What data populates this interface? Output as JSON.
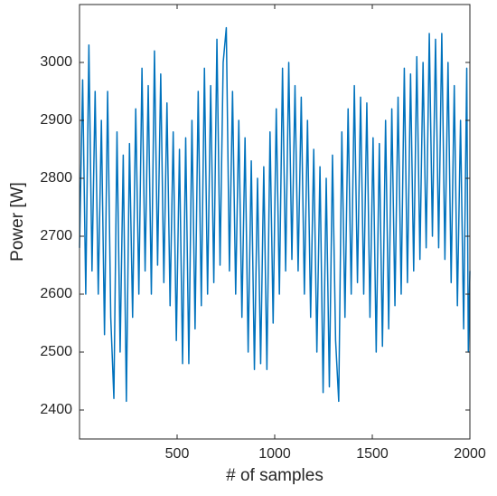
{
  "chart_data": {
    "type": "line",
    "xlabel": "# of samples",
    "ylabel": "Power [W]",
    "xlim": [
      0,
      2000
    ],
    "xticks": [
      500,
      1000,
      1500,
      2000
    ],
    "ylim": [
      2350,
      3100
    ],
    "yticks": [
      2400,
      2500,
      2600,
      2700,
      2800,
      2900,
      3000
    ],
    "grid": false,
    "x": [
      0,
      16,
      32,
      48,
      64,
      80,
      96,
      112,
      128,
      144,
      160,
      176,
      192,
      208,
      224,
      240,
      256,
      272,
      288,
      304,
      320,
      336,
      352,
      368,
      384,
      400,
      416,
      432,
      448,
      464,
      480,
      496,
      512,
      528,
      544,
      560,
      576,
      592,
      608,
      624,
      640,
      656,
      672,
      688,
      704,
      720,
      736,
      752,
      768,
      784,
      800,
      816,
      832,
      848,
      864,
      880,
      896,
      912,
      928,
      944,
      960,
      976,
      992,
      1008,
      1024,
      1040,
      1056,
      1072,
      1088,
      1104,
      1120,
      1136,
      1152,
      1168,
      1184,
      1200,
      1216,
      1232,
      1248,
      1264,
      1280,
      1296,
      1312,
      1328,
      1344,
      1360,
      1376,
      1392,
      1408,
      1424,
      1440,
      1456,
      1472,
      1488,
      1504,
      1520,
      1536,
      1552,
      1568,
      1584,
      1600,
      1616,
      1632,
      1648,
      1664,
      1680,
      1696,
      1712,
      1728,
      1744,
      1760,
      1776,
      1792,
      1808,
      1824,
      1840,
      1856,
      1872,
      1888,
      1904,
      1920,
      1936,
      1952,
      1968,
      1984,
      1992,
      2000
    ],
    "series": [
      {
        "color": "#0072bd",
        "values": [
          2680,
          2970,
          2600,
          3030,
          2640,
          2950,
          2600,
          2900,
          2530,
          2950,
          2560,
          2420,
          2880,
          2500,
          2840,
          2415,
          2860,
          2560,
          2920,
          2600,
          2990,
          2640,
          2960,
          2600,
          3020,
          2650,
          2980,
          2620,
          2930,
          2580,
          2880,
          2520,
          2850,
          2480,
          2870,
          2480,
          2900,
          2540,
          2950,
          2580,
          2990,
          2600,
          2960,
          2620,
          3040,
          2650,
          3000,
          3060,
          2640,
          2950,
          2600,
          2900,
          2560,
          2870,
          2500,
          2830,
          2470,
          2800,
          2480,
          2820,
          2470,
          2880,
          2550,
          2920,
          2600,
          2990,
          2640,
          3000,
          2660,
          2960,
          2640,
          2940,
          2600,
          2900,
          2560,
          2850,
          2500,
          2820,
          2430,
          2800,
          2440,
          2840,
          2520,
          2415,
          2880,
          2560,
          2920,
          2600,
          2960,
          2620,
          2940,
          2600,
          2930,
          2560,
          2870,
          2500,
          2860,
          2510,
          2900,
          2540,
          2920,
          2580,
          2940,
          2600,
          2990,
          2620,
          2980,
          2640,
          3010,
          2660,
          3000,
          2680,
          3050,
          2700,
          3040,
          2680,
          3050,
          2660,
          3000,
          2620,
          2960,
          2580,
          2900,
          2540,
          2990,
          2500,
          2640
        ]
      }
    ]
  }
}
